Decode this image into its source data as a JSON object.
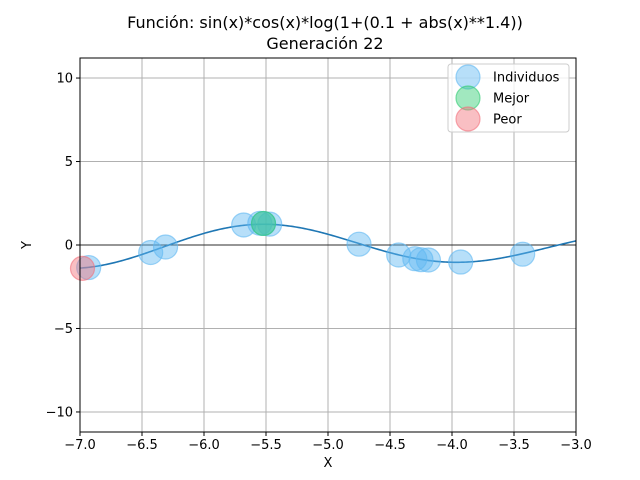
{
  "chart_data": {
    "type": "scatter",
    "title": "Función: sin(x)*cos(x)*log(1+(0.1 + abs(x)**1.4))",
    "subtitle": "Generación 22",
    "xlabel": "X",
    "ylabel": "Y",
    "xlim": [
      -7.0,
      -3.0
    ],
    "ylim": [
      -11.2,
      11.2
    ],
    "xticks": [
      "−7.0",
      "−6.5",
      "−6.0",
      "−5.5",
      "−5.0",
      "−4.5",
      "−4.0",
      "−3.5",
      "−3.0"
    ],
    "xtick_values": [
      -7.0,
      -6.5,
      -6.0,
      -5.5,
      -5.0,
      -4.5,
      -4.0,
      -3.5,
      -3.0
    ],
    "yticks": [
      "−10",
      "−5",
      "0",
      "5",
      "10"
    ],
    "ytick_values": [
      -10,
      -5,
      0,
      5,
      10
    ],
    "grid": true,
    "legend_position": "top-right",
    "curve": {
      "function": "sin(x)*cos(x)*log(1+(0.1 + abs(x)**1.4))",
      "color": "#1f77b4"
    },
    "series": [
      {
        "name": "Individuos",
        "color": "#5fb7f2",
        "points": [
          {
            "x": -6.93,
            "y": -1.35
          },
          {
            "x": -6.43,
            "y": -0.45
          },
          {
            "x": -6.31,
            "y": -0.12
          },
          {
            "x": -5.68,
            "y": 1.2
          },
          {
            "x": -5.55,
            "y": 1.3
          },
          {
            "x": -5.52,
            "y": 1.29
          },
          {
            "x": -5.47,
            "y": 1.25
          },
          {
            "x": -4.75,
            "y": 0.05
          },
          {
            "x": -4.43,
            "y": -0.6
          },
          {
            "x": -4.3,
            "y": -0.82
          },
          {
            "x": -4.25,
            "y": -0.88
          },
          {
            "x": -4.19,
            "y": -0.9
          },
          {
            "x": -3.93,
            "y": -1.02
          },
          {
            "x": -3.43,
            "y": -0.55
          }
        ]
      },
      {
        "name": "Mejor",
        "color": "#2ecc71",
        "points": [
          {
            "x": -5.52,
            "y": 1.29
          }
        ]
      },
      {
        "name": "Peor",
        "color": "#f1707b",
        "points": [
          {
            "x": -6.98,
            "y": -1.4
          }
        ]
      }
    ]
  }
}
